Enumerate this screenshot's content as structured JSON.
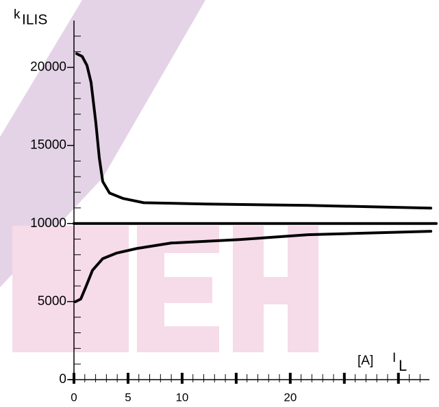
{
  "chart_data": {
    "type": "line",
    "y_label": "k",
    "y_label_sub": "ILIS",
    "x_unit": "[A]",
    "x_label": "I",
    "x_label_sub": "L",
    "series": [
      {
        "color": "#000000",
        "x": [
          0.25,
          0.76,
          1.2,
          1.58,
          2.03,
          2.34,
          2.66,
          3.29,
          4.56,
          6.46,
          12.15,
          21.65,
          33.0
        ],
        "values": [
          20875,
          20700,
          20130,
          19040,
          16410,
          14220,
          12690,
          11950,
          11600,
          11330,
          11250,
          11160,
          10985
        ]
      },
      {
        "color": "#000000",
        "x": [
          0,
          33.5
        ],
        "values": [
          10000,
          10000
        ]
      },
      {
        "color": "#000000",
        "x": [
          0.13,
          0.63,
          1.08,
          1.71,
          2.66,
          3.92,
          5.82,
          8.99,
          15.3,
          21.65,
          33.0
        ],
        "values": [
          4990,
          5165,
          5910,
          7000,
          7750,
          8100,
          8400,
          8750,
          8970,
          9280,
          9500
        ]
      }
    ],
    "xlim": [
      0,
      33.5
    ],
    "xticks": [
      0,
      5,
      10,
      20
    ],
    "xmajor_ticks": [
      0,
      5,
      10,
      15,
      20,
      25,
      30
    ],
    "xminor_ticks": [
      1,
      2,
      3,
      4,
      6,
      7,
      8,
      9,
      11,
      12,
      13,
      14,
      16,
      17,
      18,
      19,
      21,
      22,
      23,
      24,
      26,
      27,
      28,
      29,
      31,
      32
    ],
    "ylim": [
      0,
      23000
    ],
    "yticks": [
      0,
      5000,
      10000,
      15000,
      20000
    ],
    "yminor_ticks": [
      1000,
      2000,
      3000,
      4000,
      6000,
      7000,
      8000,
      9000,
      11000,
      12000,
      13000,
      14000,
      16000,
      17000,
      18000,
      19000,
      21000,
      22000
    ]
  }
}
